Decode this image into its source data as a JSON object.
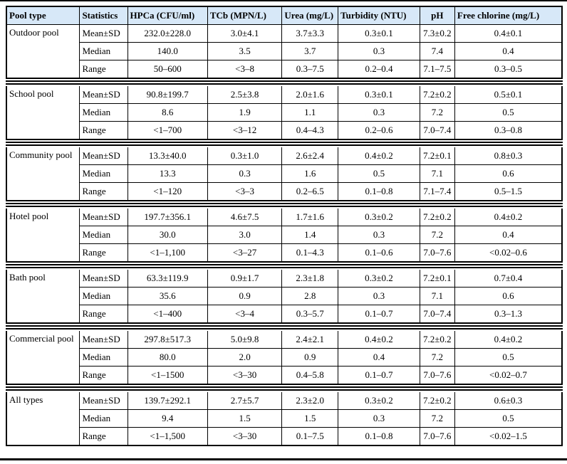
{
  "styles": {
    "header_bg": "#d7e8f8",
    "border_color": "#000000",
    "rule_color": "#000000"
  },
  "table": {
    "columns": [
      "Pool type",
      "Statistics",
      "HPCa (CFU/ml)",
      "TCb (MPN/L)",
      "Urea (mg/L)",
      "Turbidity (NTU)",
      "pH",
      "Free chlorine (mg/L)"
    ],
    "groups": [
      {
        "pool_type": "Outdoor pool",
        "rows": [
          {
            "statistic": "Mean±SD",
            "values": [
              "232.0±228.0",
              "3.0±4.1",
              "3.7±3.3",
              "0.3±0.1",
              "7.3±0.2",
              "0.4±0.1"
            ]
          },
          {
            "statistic": "Median",
            "values": [
              "140.0",
              "3.5",
              "3.7",
              "0.3",
              "7.4",
              "0.4"
            ]
          },
          {
            "statistic": "Range",
            "values": [
              "50–600",
              "<3–8",
              "0.3–7.5",
              "0.2–0.4",
              "7.1–7.5",
              "0.3–0.5"
            ]
          }
        ]
      },
      {
        "pool_type": "School pool",
        "rows": [
          {
            "statistic": "Mean±SD",
            "values": [
              "90.8±199.7",
              "2.5±3.8",
              "2.0±1.6",
              "0.3±0.1",
              "7.2±0.2",
              "0.5±0.1"
            ]
          },
          {
            "statistic": "Median",
            "values": [
              "8.6",
              "1.9",
              "1.1",
              "0.3",
              "7.2",
              "0.5"
            ]
          },
          {
            "statistic": "Range",
            "values": [
              "<1–700",
              "<3–12",
              "0.4–4.3",
              "0.2–0.6",
              "7.0–7.4",
              "0.3–0.8"
            ]
          }
        ]
      },
      {
        "pool_type": "Community pool",
        "rows": [
          {
            "statistic": "Mean±SD",
            "values": [
              "13.3±40.0",
              "0.3±1.0",
              "2.6±2.4",
              "0.4±0.2",
              "7.2±0.1",
              "0.8±0.3"
            ]
          },
          {
            "statistic": "Median",
            "values": [
              "13.3",
              "0.3",
              "1.6",
              "0.5",
              "7.1",
              "0.6"
            ]
          },
          {
            "statistic": "Range",
            "values": [
              "<1–120",
              "<3–3",
              "0.2–6.5",
              "0.1–0.8",
              "7.1–7.4",
              "0.5–1.5"
            ]
          }
        ]
      },
      {
        "pool_type": "Hotel pool",
        "rows": [
          {
            "statistic": "Mean±SD",
            "values": [
              "197.7±356.1",
              "4.6±7.5",
              "1.7±1.6",
              "0.3±0.2",
              "7.2±0.2",
              "0.4±0.2"
            ]
          },
          {
            "statistic": "Median",
            "values": [
              "30.0",
              "3.0",
              "1.4",
              "0.3",
              "7.2",
              "0.4"
            ]
          },
          {
            "statistic": "Range",
            "values": [
              "<1–1,100",
              "<3–27",
              "0.1–4.3",
              "0.1–0.6",
              "7.0–7.6",
              "<0.02–0.6"
            ]
          }
        ]
      },
      {
        "pool_type": "Bath pool",
        "rows": [
          {
            "statistic": "Mean±SD",
            "values": [
              "63.3±119.9",
              "0.9±1.7",
              "2.3±1.8",
              "0.3±0.2",
              "7.2±0.1",
              "0.7±0.4"
            ]
          },
          {
            "statistic": "Median",
            "values": [
              "35.6",
              "0.9",
              "2.8",
              "0.3",
              "7.1",
              "0.6"
            ]
          },
          {
            "statistic": "Range",
            "values": [
              "<1–400",
              "<3–4",
              "0.3–5.7",
              "0.1–0.7",
              "7.0–7.4",
              "0.3–1.3"
            ]
          }
        ]
      },
      {
        "pool_type": "Commercial pool",
        "rows": [
          {
            "statistic": "Mean±SD",
            "values": [
              "297.8±517.3",
              "5.0±9.8",
              "2.4±2.1",
              "0.4±0.2",
              "7.2±0.2",
              "0.4±0.2"
            ]
          },
          {
            "statistic": "Median",
            "values": [
              "80.0",
              "2.0",
              "0.9",
              "0.4",
              "7.2",
              "0.5"
            ]
          },
          {
            "statistic": "Range",
            "values": [
              "<1–1500",
              "<3–30",
              "0.4–5.8",
              "0.1–0.7",
              "7.0–7.6",
              "<0.02–0.7"
            ]
          }
        ]
      },
      {
        "pool_type": "All types",
        "rows": [
          {
            "statistic": "Mean±SD",
            "values": [
              "139.7±292.1",
              "2.7±5.7",
              "2.3±2.0",
              "0.3±0.2",
              "7.2±0.2",
              "0.6±0.3"
            ]
          },
          {
            "statistic": "Median",
            "values": [
              "9.4",
              "1.5",
              "1.5",
              "0.3",
              "7.2",
              "0.5"
            ]
          },
          {
            "statistic": "Range",
            "values": [
              "<1–1,500",
              "<3–30",
              "0.1–7.5",
              "0.1–0.8",
              "7.0–7.6",
              "<0.02–1.5"
            ]
          }
        ]
      }
    ]
  }
}
